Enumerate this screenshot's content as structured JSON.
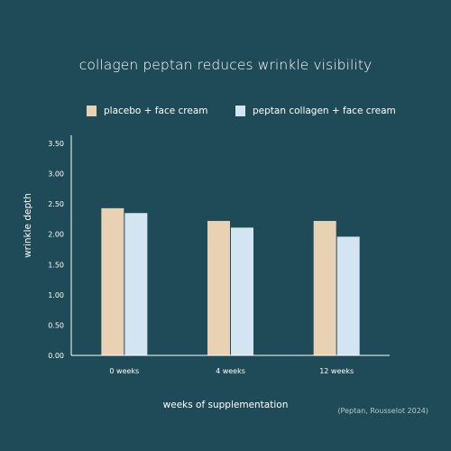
{
  "chart_data": {
    "type": "bar",
    "title": "collagen peptan reduces wrinkle visibility",
    "xlabel": "weeks of supplementation",
    "ylabel": "wrinkle depth",
    "categories": [
      "0 weeks",
      "4 weeks",
      "12 weeks"
    ],
    "series": [
      {
        "name": "placebo + face cream",
        "values": [
          2.43,
          2.22,
          2.22
        ]
      },
      {
        "name": "peptan collagen + face cream",
        "values": [
          2.35,
          2.11,
          1.96
        ]
      }
    ],
    "ylim": [
      0,
      3.5
    ],
    "yticks": [
      "0.00",
      "0.50",
      "1.00",
      "1.50",
      "2.00",
      "2.50",
      "3.00",
      "3.50"
    ],
    "grid": false,
    "legend_position": "top",
    "source": "(Peptan, Rousselot 2024)",
    "colors": {
      "background": "#1e4b57",
      "series": [
        "#e8d2b3",
        "#d3e5f2"
      ],
      "axis": "#ffffff"
    }
  }
}
